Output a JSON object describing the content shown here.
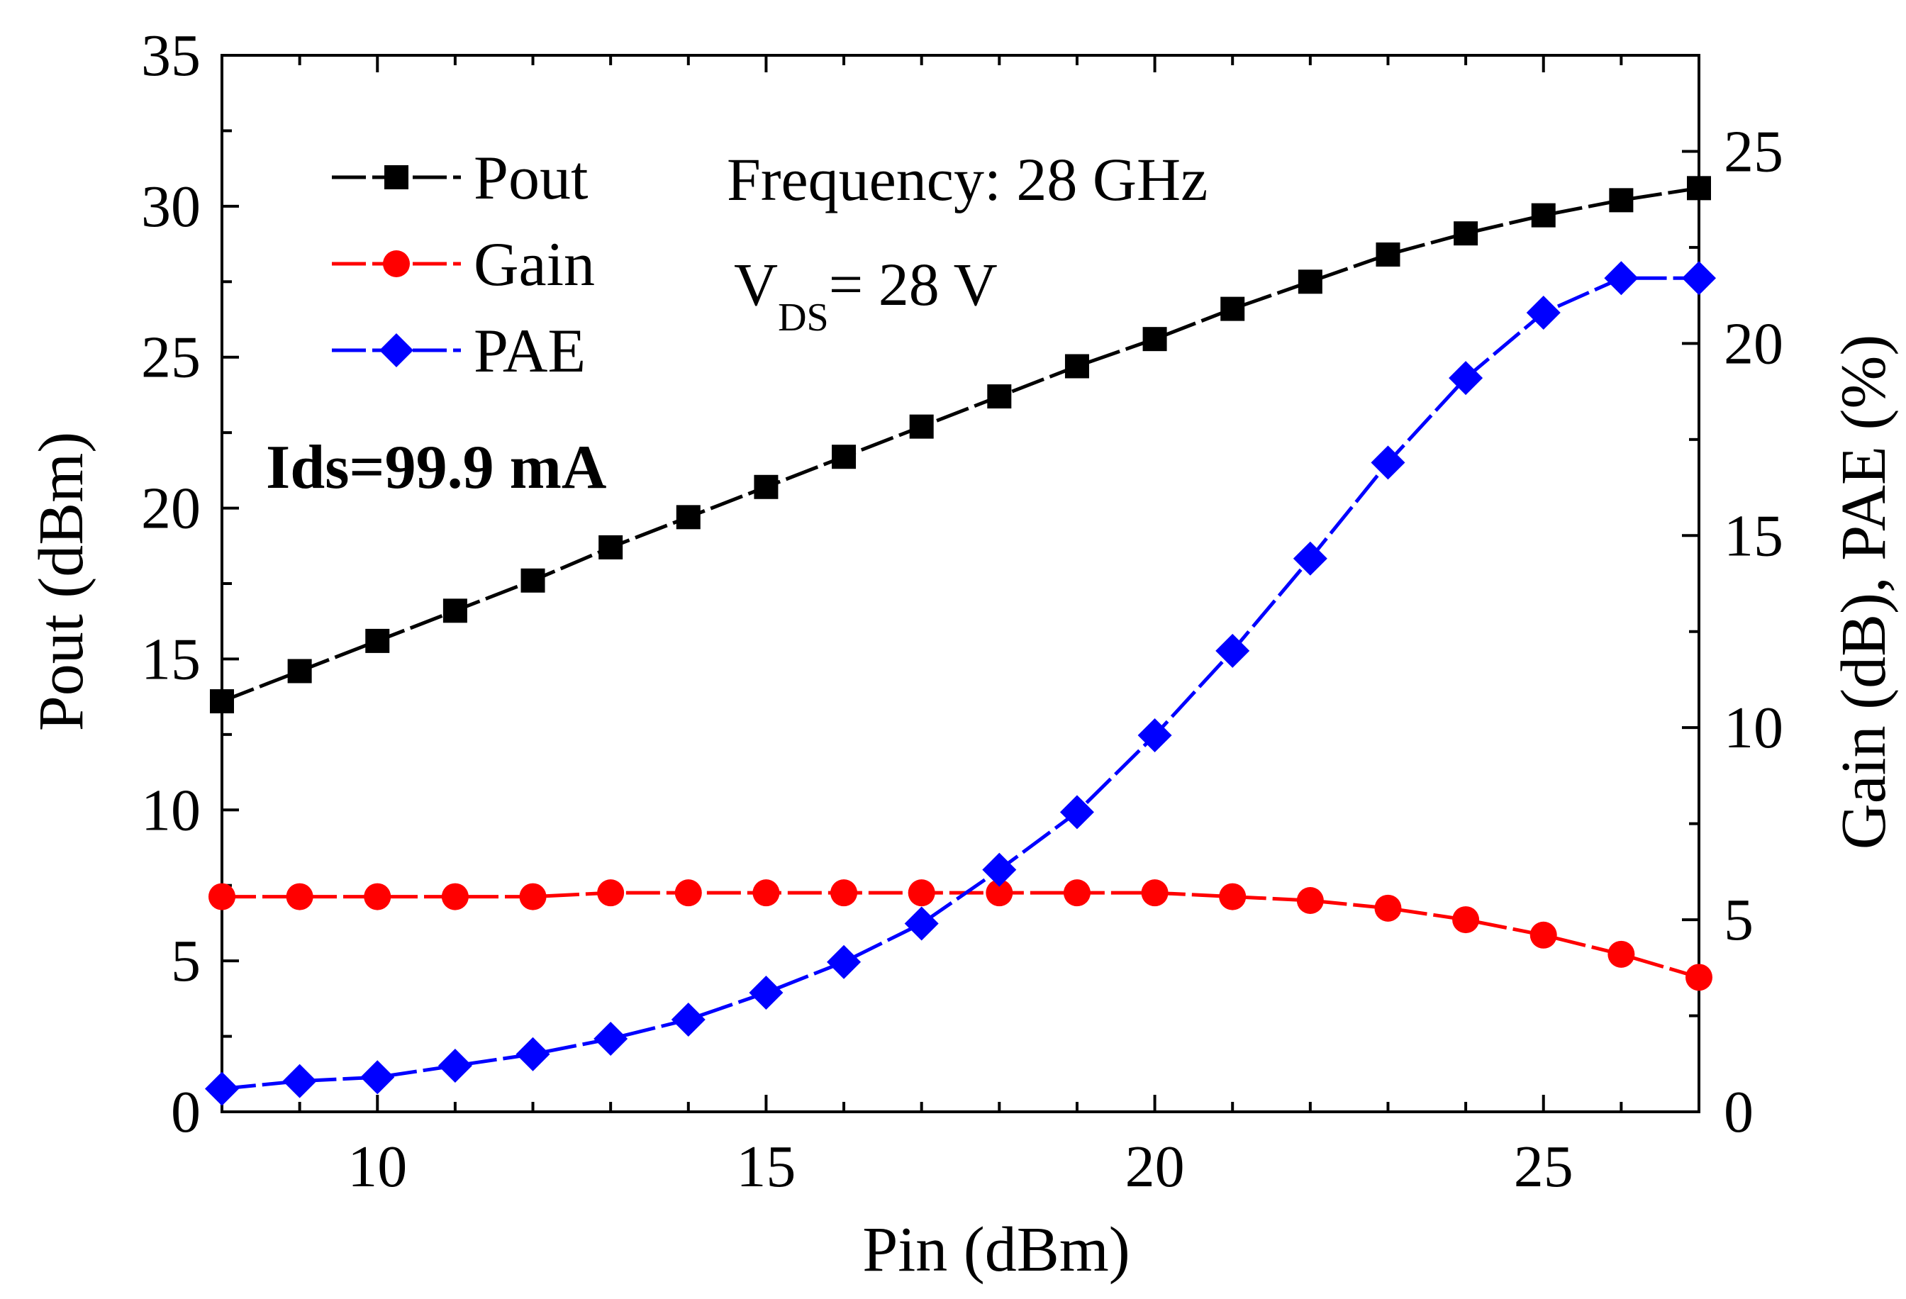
{
  "chart_data": {
    "type": "line",
    "title": "",
    "xlabel": "Pin (dBm)",
    "ylabel": "Pout (dBm)",
    "y2label": "Gain (dB), PAE (%)",
    "xlim": [
      8,
      27
    ],
    "ylim": [
      0,
      35
    ],
    "y2lim": [
      0,
      27.5
    ],
    "xticks": [
      10,
      15,
      20,
      25
    ],
    "yticks": [
      0,
      5,
      10,
      15,
      20,
      25,
      30,
      35
    ],
    "y2ticks": [
      0,
      5,
      10,
      15,
      20,
      25
    ],
    "x": [
      8,
      9,
      10,
      11,
      12,
      13,
      14,
      15,
      16,
      17,
      18,
      19,
      20,
      21,
      22,
      23,
      24,
      25,
      26,
      27
    ],
    "series": [
      {
        "name": "Pout",
        "axis": "left",
        "color": "#000000",
        "marker": "square",
        "values": [
          13.6,
          14.6,
          15.6,
          16.6,
          17.6,
          18.7,
          19.7,
          20.7,
          21.7,
          22.7,
          23.7,
          24.7,
          25.6,
          26.6,
          27.5,
          28.4,
          29.1,
          29.7,
          30.2,
          30.6
        ]
      },
      {
        "name": "Gain",
        "axis": "right",
        "color": "#ff0000",
        "marker": "circle",
        "values": [
          5.6,
          5.6,
          5.6,
          5.6,
          5.6,
          5.7,
          5.7,
          5.7,
          5.7,
          5.7,
          5.7,
          5.7,
          5.7,
          5.6,
          5.5,
          5.3,
          5.0,
          4.6,
          4.1,
          3.5
        ]
      },
      {
        "name": "PAE",
        "axis": "right",
        "color": "#0000ff",
        "marker": "diamond",
        "values": [
          0.6,
          0.8,
          0.9,
          1.2,
          1.5,
          1.9,
          2.4,
          3.1,
          3.9,
          4.9,
          6.3,
          7.8,
          9.8,
          12.0,
          14.4,
          16.9,
          19.1,
          20.8,
          21.7,
          21.7
        ]
      }
    ],
    "legend": {
      "position": "top-left",
      "entries": [
        "Pout",
        "Gain",
        "PAE"
      ]
    },
    "annotations": {
      "frequency": "Frequency: 28 GHz",
      "vds_main": "V",
      "vds_sub": "DS",
      "vds_value": "= 28 V",
      "ids": "Ids=99.9 mA"
    }
  }
}
